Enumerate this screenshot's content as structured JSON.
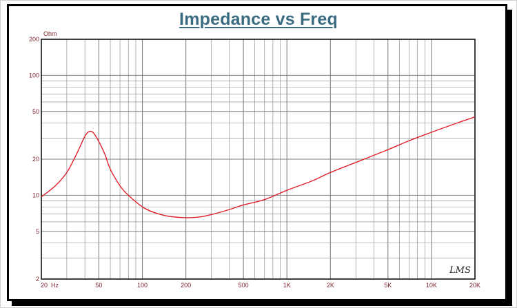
{
  "chart_data": {
    "type": "line",
    "title": "Impedance vs Freq",
    "ylabel": "Ohm",
    "xlabel": "",
    "x_scale": "log",
    "y_scale": "log",
    "xlim": [
      20,
      20000
    ],
    "ylim": [
      2,
      200
    ],
    "x_ticks": [
      {
        "v": 20,
        "label": "20  Hz"
      },
      {
        "v": 50,
        "label": "50"
      },
      {
        "v": 100,
        "label": "100"
      },
      {
        "v": 200,
        "label": "200"
      },
      {
        "v": 500,
        "label": "500"
      },
      {
        "v": 1000,
        "label": "1K"
      },
      {
        "v": 2000,
        "label": "2K"
      },
      {
        "v": 5000,
        "label": "5K"
      },
      {
        "v": 10000,
        "label": "10K"
      },
      {
        "v": 20000,
        "label": "20K"
      }
    ],
    "y_ticks": [
      {
        "v": 2,
        "label": "2"
      },
      {
        "v": 5,
        "label": "5"
      },
      {
        "v": 10,
        "label": "10"
      },
      {
        "v": 20,
        "label": "20"
      },
      {
        "v": 50,
        "label": "50"
      },
      {
        "v": 100,
        "label": "100"
      },
      {
        "v": 200,
        "label": "200"
      }
    ],
    "grid": true,
    "series": [
      {
        "color": "#e0202a",
        "x": [
          20,
          25,
          30,
          35,
          40,
          43,
          46,
          50,
          55,
          60,
          70,
          80,
          100,
          120,
          150,
          200,
          250,
          300,
          400,
          500,
          700,
          1000,
          1500,
          2000,
          3000,
          5000,
          7000,
          10000,
          15000,
          20000
        ],
        "y": [
          9.7,
          12,
          15.5,
          22,
          31,
          34,
          33,
          28,
          22,
          16.5,
          12,
          10,
          8.0,
          7.2,
          6.7,
          6.5,
          6.6,
          6.9,
          7.6,
          8.3,
          9.2,
          11.0,
          13.2,
          15.5,
          18.8,
          24.0,
          28.5,
          33.5,
          40.0,
          45.0
        ]
      }
    ],
    "colors": {
      "grid": "#808080",
      "axis": "#7a1f2a",
      "title": "#3a6b80"
    }
  },
  "watermark": "LMS"
}
